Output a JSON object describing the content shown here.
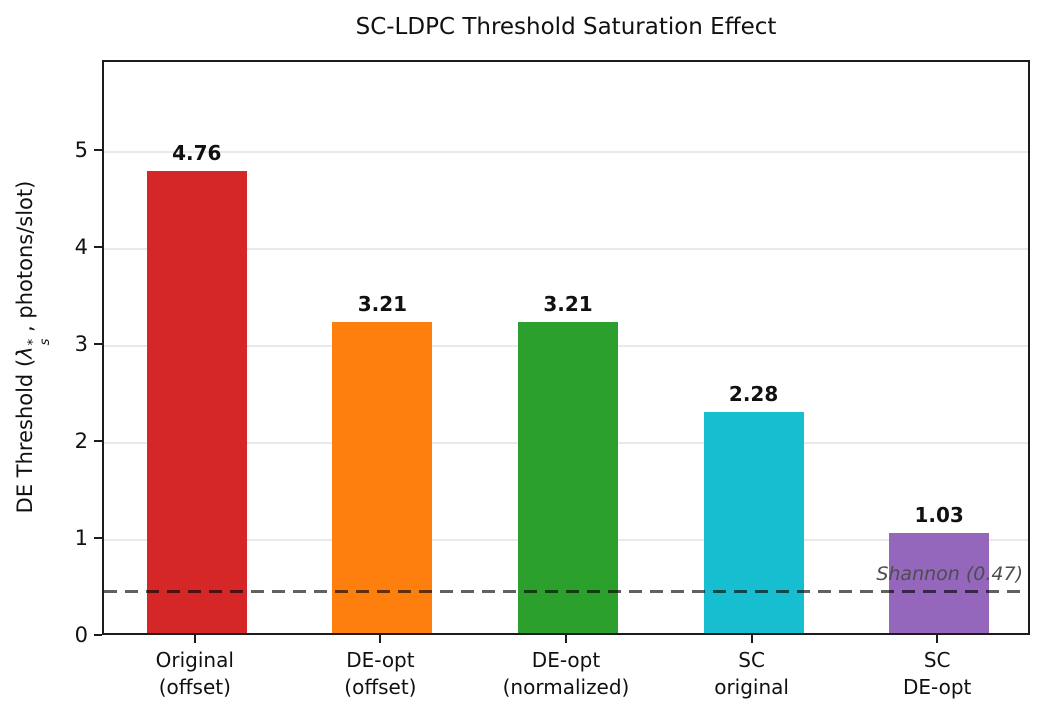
{
  "title": "SC-LDPC Threshold Saturation Effect",
  "ylabel": {
    "prefix": "DE Threshold (",
    "lambda": "λ",
    "star": "*",
    "sub": "s",
    "suffix": " , photons/slot)"
  },
  "chart_data": {
    "type": "bar",
    "title": "SC-LDPC Threshold Saturation Effect",
    "ylabel": "DE Threshold (λ_s^*, photons/slot)",
    "xlabel": "",
    "categories": [
      "Original\n(offset)",
      "DE-opt\n(offset)",
      "DE-opt\n(normalized)",
      "SC\noriginal",
      "SC\nDE-opt"
    ],
    "values": [
      4.76,
      3.21,
      3.21,
      2.28,
      1.03
    ],
    "value_labels": [
      "4.76",
      "3.21",
      "3.21",
      "2.28",
      "1.03"
    ],
    "bar_colors": [
      "#d62728",
      "#ff7f0e",
      "#2ca02c",
      "#17becf",
      "#9467bd"
    ],
    "yticks": [
      0,
      1,
      2,
      3,
      4,
      5
    ],
    "ylim": [
      0,
      5.93
    ],
    "grid": "horizontal major gridlines, light gray",
    "legend": "none",
    "reference_line": {
      "value": 0.47,
      "label": "Shannon (0.47)",
      "style": "dashed",
      "color": "rgba(0,0,0,0.62)"
    }
  }
}
